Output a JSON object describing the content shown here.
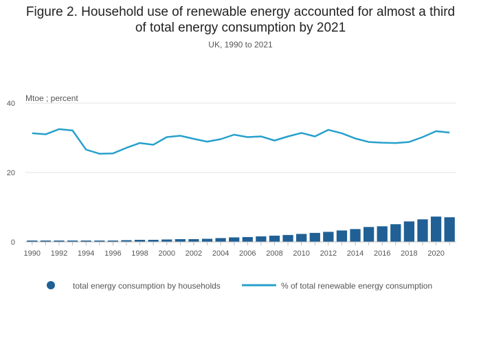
{
  "chart_data": {
    "type": "bar+line",
    "title": "Figure 2. Household use of renewable energy accounted for almost a third of total energy consumption by 2021",
    "title_lines": [
      "Figure 2. Household use of renewable energy accounted for almost a third",
      "of total energy consumption by 2021"
    ],
    "subtitle": "UK, 1990 to 2021",
    "ylabel": "Mtoe ; percent",
    "ylim": [
      0,
      40
    ],
    "yticks": [
      0,
      20,
      40
    ],
    "x": [
      1990,
      1991,
      1992,
      1993,
      1994,
      1995,
      1996,
      1997,
      1998,
      1999,
      2000,
      2001,
      2002,
      2003,
      2004,
      2005,
      2006,
      2007,
      2008,
      2009,
      2010,
      2011,
      2012,
      2013,
      2014,
      2015,
      2016,
      2017,
      2018,
      2019,
      2020,
      2021
    ],
    "xticks": [
      1990,
      1992,
      1994,
      1996,
      1998,
      2000,
      2002,
      2004,
      2006,
      2008,
      2010,
      2012,
      2014,
      2016,
      2018,
      2020
    ],
    "series": [
      {
        "name": "total energy consumption by households",
        "type": "bar",
        "color": "#206095",
        "values": [
          0.4,
          0.4,
          0.4,
          0.4,
          0.4,
          0.4,
          0.4,
          0.5,
          0.6,
          0.6,
          0.7,
          0.8,
          0.8,
          0.9,
          1.1,
          1.3,
          1.4,
          1.6,
          1.8,
          2.0,
          2.3,
          2.6,
          2.9,
          3.3,
          3.7,
          4.3,
          4.5,
          5.1,
          5.9,
          6.5,
          7.3,
          7.1
        ]
      },
      {
        "name": "% of total renewable energy consumption",
        "type": "line",
        "color": "#27a0cc",
        "values": [
          31.3,
          31.0,
          32.5,
          32.1,
          26.6,
          25.4,
          25.5,
          27.1,
          28.5,
          28.0,
          30.2,
          30.6,
          29.7,
          28.9,
          29.6,
          30.9,
          30.2,
          30.4,
          29.2,
          30.4,
          31.4,
          30.4,
          32.3,
          31.3,
          29.8,
          28.8,
          28.6,
          28.5,
          28.8,
          30.2,
          31.9,
          31.5
        ]
      }
    ],
    "legend_position": "bottom",
    "grid": true
  }
}
